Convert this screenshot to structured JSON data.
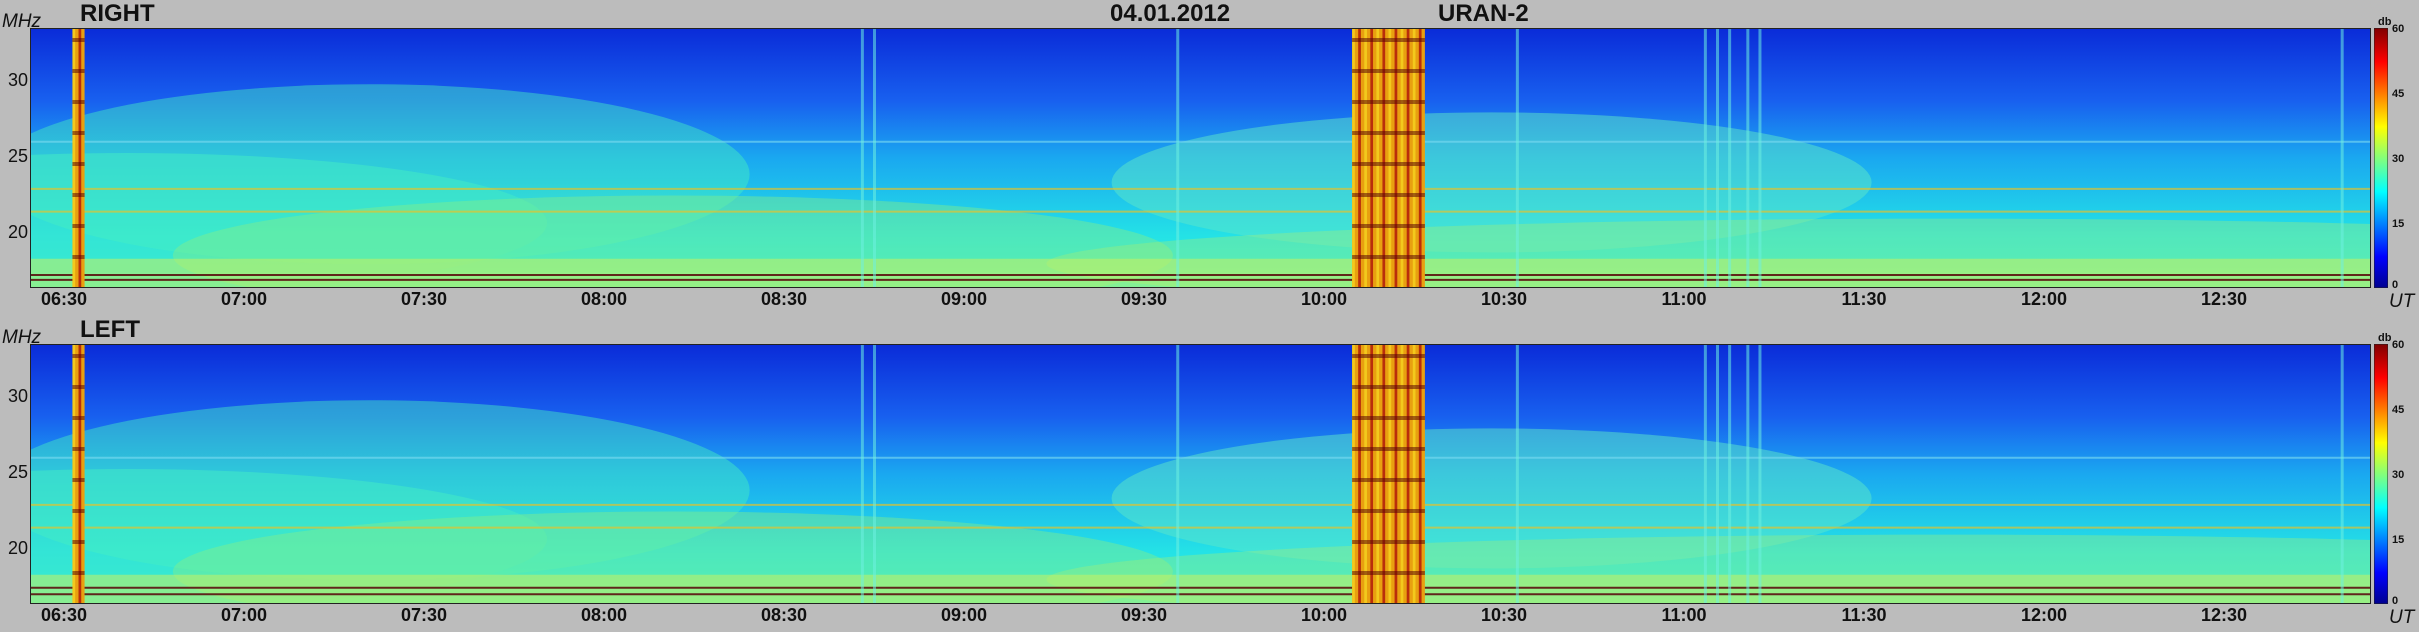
{
  "header": {
    "date": "04.01.2012",
    "instrument": "URAN-2"
  },
  "chart_data": [
    {
      "type": "heatmap",
      "title": "RIGHT",
      "ylabel": "MHz",
      "xlabel": "UT",
      "ylim": [
        17,
        33
      ],
      "yticks": [
        20,
        25,
        30
      ],
      "xlim": [
        "06:24",
        "12:50"
      ],
      "xticks": [
        "06:30",
        "07:00",
        "07:30",
        "08:00",
        "08:30",
        "09:00",
        "09:30",
        "10:00",
        "10:30",
        "11:00",
        "11:30",
        "12:00",
        "12:30"
      ],
      "colorbar": {
        "label": "db",
        "range": [
          0,
          60
        ],
        "ticks": [
          0,
          15,
          30,
          45,
          60
        ]
      },
      "features": {
        "strong_bursts_UT": [
          [
            "06:31",
            "06:33"
          ],
          [
            "10:02",
            "10:14"
          ]
        ],
        "rfi_lines_MHz": [
          17.8,
          17.5,
          21.7,
          23.1,
          26.0
        ]
      }
    },
    {
      "type": "heatmap",
      "title": "LEFT",
      "ylabel": "MHz",
      "xlabel": "UT",
      "ylim": [
        17,
        33
      ],
      "yticks": [
        20,
        25,
        30
      ],
      "xlim": [
        "06:24",
        "12:50"
      ],
      "xticks": [
        "06:30",
        "07:00",
        "07:30",
        "08:00",
        "08:30",
        "09:00",
        "09:30",
        "10:00",
        "10:30",
        "11:00",
        "11:30",
        "12:00",
        "12:30"
      ],
      "colorbar": {
        "label": "db",
        "range": [
          0,
          60
        ],
        "ticks": [
          0,
          15,
          30,
          45,
          60
        ]
      },
      "features": {
        "strong_bursts_UT": [
          [
            "06:31",
            "06:33"
          ],
          [
            "10:02",
            "10:14"
          ]
        ],
        "rfi_lines_MHz": [
          18.0,
          17.6,
          21.7,
          23.1,
          26.0
        ]
      }
    }
  ]
}
